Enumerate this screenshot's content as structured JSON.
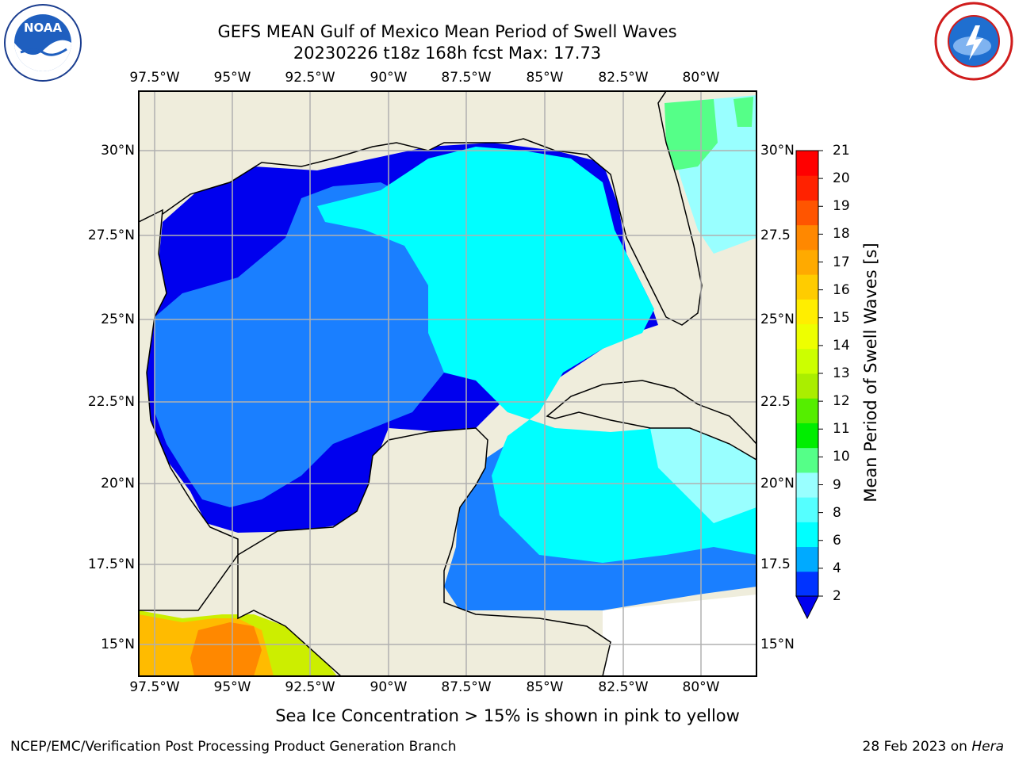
{
  "title": {
    "line1": "GEFS MEAN Gulf of Mexico Mean Period of Swell Waves",
    "line2": "20230226 t18z 168h fcst   Max: 17.73"
  },
  "map": {
    "lon_labels": [
      "97.5°W",
      "95°W",
      "92.5°W",
      "90°W",
      "87.5°W",
      "85°W",
      "82.5°W",
      "80°W"
    ],
    "lat_labels_left": [
      "30°N",
      "27.5°N",
      "25°N",
      "22.5°N",
      "20°N",
      "17.5°N",
      "15°N"
    ],
    "lat_labels_right": [
      "30°N",
      "27.5",
      "25°N",
      "22.5",
      "20°N",
      "17.5",
      "15°N"
    ],
    "land_color": "#efeddc",
    "grid": true
  },
  "colorbar": {
    "label": "Mean Period of Swell Waves [s]",
    "ticks": [
      "2",
      "4",
      "6",
      "8",
      "9",
      "10",
      "11",
      "12",
      "13",
      "14",
      "15",
      "16",
      "17",
      "18",
      "19",
      "20",
      "21"
    ],
    "colors": [
      "#0033ff",
      "#00aaff",
      "#00ffff",
      "#55ffff",
      "#99ffff",
      "#55ff88",
      "#00ee00",
      "#55ee00",
      "#aaee00",
      "#ccff00",
      "#eeff00",
      "#ffee00",
      "#ffcc00",
      "#ffaa00",
      "#ff8800",
      "#ff5500",
      "#ff2200",
      "#ff0000"
    ],
    "extend_color": "#0000ee"
  },
  "note": "Sea Ice Concentration > 15% is shown in pink to yellow",
  "footer": {
    "left": "NCEP/EMC/Verification Post Processing Product Generation Branch",
    "right_prefix": "28 Feb 2023 on ",
    "right_host": "Hera"
  }
}
